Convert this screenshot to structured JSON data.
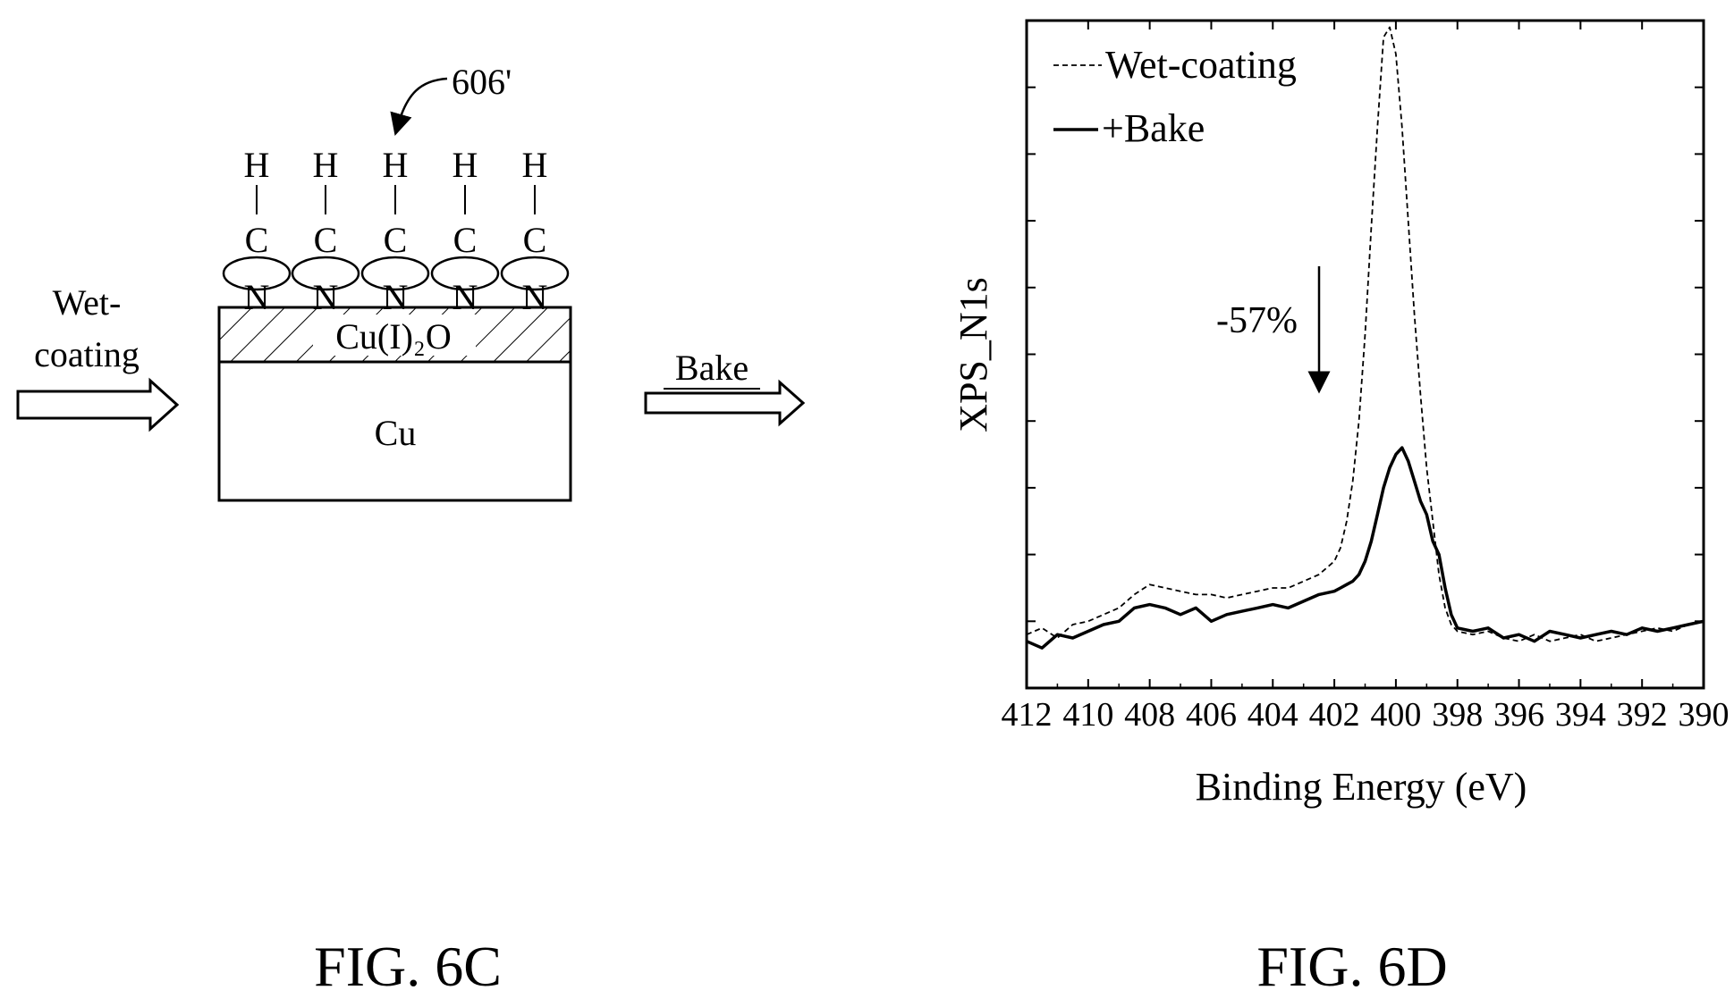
{
  "fig6c": {
    "caption": "FIG. 6C",
    "ref_label": "606'",
    "wet_label_1": "Wet-",
    "wet_label_2": "coating",
    "bake_label": "Bake",
    "layer_oxide_label": "Cu(I)₂O",
    "layer_cu_label": "Cu",
    "molecules": [
      {
        "top": "H",
        "mid": "C",
        "bottom": "N"
      },
      {
        "top": "H",
        "mid": "C",
        "bottom": "N"
      },
      {
        "top": "H",
        "mid": "C",
        "bottom": "N"
      },
      {
        "top": "H",
        "mid": "C",
        "bottom": "N"
      },
      {
        "top": "H",
        "mid": "C",
        "bottom": "N"
      }
    ]
  },
  "fig6d": {
    "caption": "FIG. 6D",
    "annotation": "-57%"
  },
  "chart_data": {
    "type": "line",
    "title": "",
    "xlabel": "Binding Energy (eV)",
    "ylabel": "XPS_N1s",
    "xlim": [
      412,
      390
    ],
    "x_reversed": true,
    "ylim": [
      0,
      1
    ],
    "y_ticks_unlabeled": true,
    "x_ticks": [
      412,
      410,
      408,
      406,
      404,
      402,
      400,
      398,
      396,
      394,
      392,
      390
    ],
    "legend_position": "top-left",
    "series": [
      {
        "name": "Wet-coating",
        "style": "dashed",
        "color": "#000000",
        "x": [
          412,
          411.5,
          411,
          410.5,
          410,
          409.5,
          409,
          408.5,
          408,
          407.5,
          407,
          406.5,
          406,
          405.5,
          405,
          404.5,
          404,
          403.5,
          403,
          402.5,
          402,
          401.8,
          401.6,
          401.4,
          401.2,
          401,
          400.8,
          400.6,
          400.4,
          400.2,
          400,
          399.8,
          399.6,
          399.4,
          399.2,
          399,
          398.8,
          398.6,
          398.4,
          398.2,
          398,
          397.5,
          397,
          396.5,
          396,
          395.5,
          395,
          394.5,
          394,
          393.5,
          393,
          392.5,
          392,
          391.5,
          391,
          390.5,
          390
        ],
        "y": [
          0.08,
          0.09,
          0.075,
          0.095,
          0.1,
          0.11,
          0.12,
          0.14,
          0.155,
          0.15,
          0.145,
          0.14,
          0.14,
          0.135,
          0.14,
          0.145,
          0.15,
          0.15,
          0.16,
          0.17,
          0.19,
          0.21,
          0.25,
          0.31,
          0.4,
          0.53,
          0.69,
          0.84,
          0.975,
          0.99,
          0.95,
          0.84,
          0.7,
          0.56,
          0.44,
          0.33,
          0.25,
          0.17,
          0.12,
          0.095,
          0.085,
          0.08,
          0.085,
          0.075,
          0.07,
          0.08,
          0.07,
          0.075,
          0.08,
          0.07,
          0.075,
          0.08,
          0.085,
          0.09,
          0.085,
          0.095,
          0.1
        ]
      },
      {
        "name": "+Bake",
        "style": "solid",
        "color": "#000000",
        "x": [
          412,
          411.5,
          411,
          410.5,
          410,
          409.5,
          409,
          408.5,
          408,
          407.5,
          407,
          406.5,
          406,
          405.5,
          405,
          404.5,
          404,
          403.5,
          403,
          402.5,
          402,
          401.8,
          401.6,
          401.4,
          401.2,
          401,
          400.8,
          400.6,
          400.4,
          400.2,
          400,
          399.8,
          399.6,
          399.4,
          399.2,
          399,
          398.8,
          398.6,
          398.4,
          398.2,
          398,
          397.5,
          397,
          396.5,
          396,
          395.5,
          395,
          394.5,
          394,
          393.5,
          393,
          392.5,
          392,
          391.5,
          391,
          390.5,
          390
        ],
        "y": [
          0.07,
          0.06,
          0.08,
          0.075,
          0.085,
          0.095,
          0.1,
          0.12,
          0.125,
          0.12,
          0.11,
          0.12,
          0.1,
          0.11,
          0.115,
          0.12,
          0.125,
          0.12,
          0.13,
          0.14,
          0.145,
          0.15,
          0.155,
          0.16,
          0.17,
          0.19,
          0.22,
          0.26,
          0.3,
          0.33,
          0.35,
          0.36,
          0.34,
          0.31,
          0.28,
          0.26,
          0.22,
          0.2,
          0.15,
          0.11,
          0.09,
          0.085,
          0.09,
          0.075,
          0.08,
          0.07,
          0.085,
          0.08,
          0.075,
          0.08,
          0.085,
          0.08,
          0.09,
          0.085,
          0.09,
          0.095,
          0.1
        ]
      }
    ]
  }
}
